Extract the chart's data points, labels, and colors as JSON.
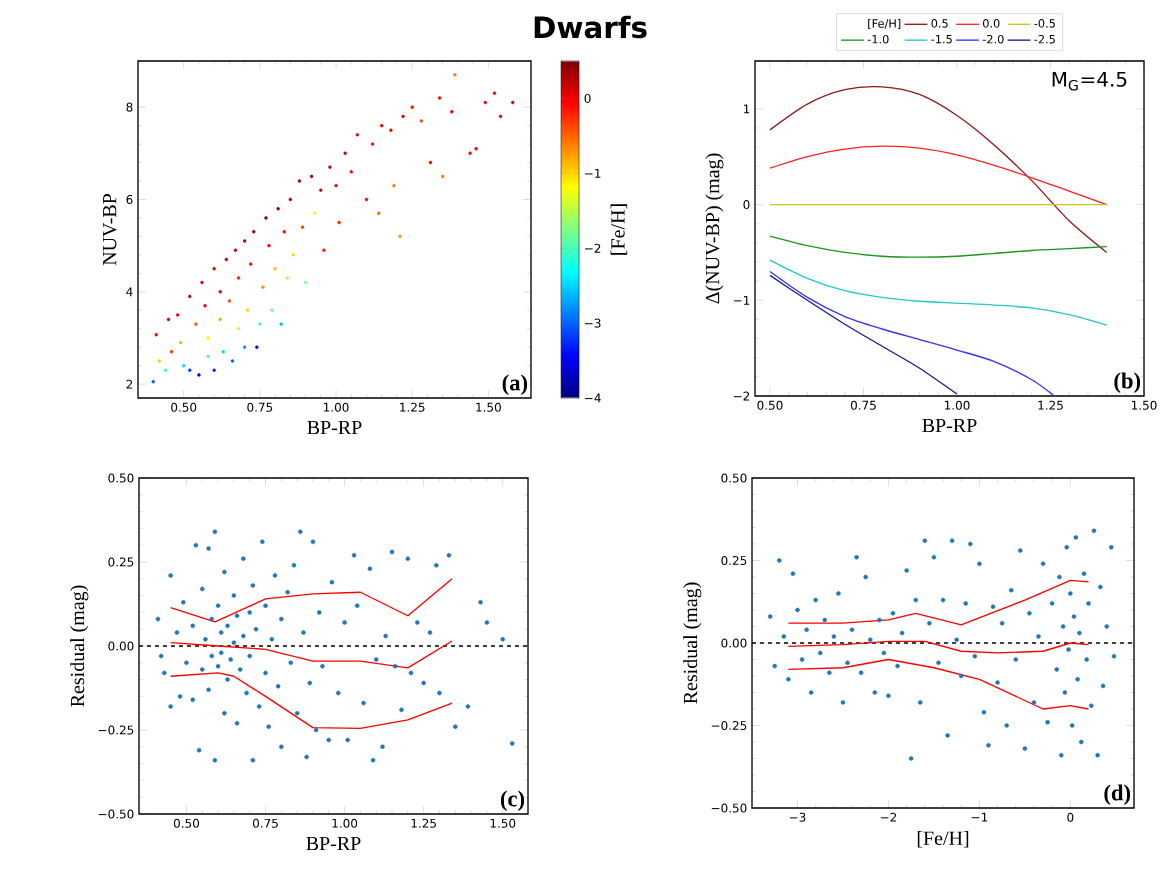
{
  "chart_data": [
    {
      "type": "scatter",
      "title": "Dwarfs",
      "xlabel": "BP-RP",
      "ylabel": "NUV-BP",
      "clabel": "[Fe/H]",
      "marker": "circle",
      "annotations": [
        "(a)"
      ],
      "xlim": [
        0.35,
        1.64
      ],
      "ylim": [
        1.7,
        9.0
      ],
      "xticks": [
        {
          "value": 0.5,
          "label": "0.50"
        },
        {
          "value": 0.75,
          "label": "0.75"
        },
        {
          "value": 1.0,
          "label": "1.00"
        },
        {
          "value": 1.25,
          "label": "1.25"
        },
        {
          "value": 1.5,
          "label": "1.50"
        }
      ],
      "yticks": [
        2,
        4,
        6,
        8
      ],
      "clim": [
        -4,
        0.5
      ],
      "cticks": [
        {
          "value": -4,
          "label": "−4"
        },
        {
          "value": -3,
          "label": "−3"
        },
        {
          "value": -2,
          "label": "−2"
        },
        {
          "value": -1,
          "label": "−1"
        },
        {
          "value": 0,
          "label": "0"
        }
      ],
      "x": [
        0.4,
        0.41,
        0.42,
        0.44,
        0.45,
        0.46,
        0.48,
        0.49,
        0.5,
        0.52,
        0.52,
        0.54,
        0.55,
        0.56,
        0.57,
        0.58,
        0.58,
        0.6,
        0.6,
        0.62,
        0.62,
        0.63,
        0.64,
        0.65,
        0.66,
        0.67,
        0.68,
        0.68,
        0.7,
        0.7,
        0.71,
        0.72,
        0.73,
        0.74,
        0.75,
        0.76,
        0.77,
        0.78,
        0.79,
        0.8,
        0.81,
        0.82,
        0.83,
        0.84,
        0.85,
        0.86,
        0.88,
        0.89,
        0.9,
        0.92,
        0.93,
        0.95,
        0.96,
        0.98,
        1.0,
        1.01,
        1.03,
        1.05,
        1.07,
        1.1,
        1.12,
        1.15,
        1.14,
        1.18,
        1.19,
        1.21,
        1.22,
        1.25,
        1.28,
        1.31,
        1.34,
        1.35,
        1.38,
        1.39,
        1.44,
        1.46,
        1.49,
        1.52,
        1.54,
        1.58
      ],
      "values": [
        2.05,
        3.07,
        2.5,
        2.3,
        3.4,
        2.7,
        3.5,
        2.9,
        2.4,
        3.9,
        2.3,
        3.3,
        2.2,
        4.2,
        3.7,
        2.6,
        3.0,
        4.5,
        2.3,
        4.0,
        3.4,
        2.7,
        4.7,
        3.8,
        2.5,
        4.9,
        3.2,
        4.3,
        5.1,
        2.8,
        3.6,
        4.6,
        5.3,
        2.8,
        3.3,
        4.1,
        5.6,
        5.0,
        3.6,
        4.5,
        5.8,
        3.3,
        5.3,
        4.3,
        6.0,
        4.8,
        6.4,
        5.4,
        4.2,
        6.5,
        5.7,
        6.2,
        4.9,
        6.7,
        6.3,
        5.5,
        7.0,
        6.6,
        7.4,
        6.0,
        7.2,
        7.6,
        5.7,
        7.5,
        6.3,
        5.2,
        7.8,
        8.0,
        7.7,
        6.8,
        8.2,
        6.5,
        7.9,
        8.7,
        7.0,
        7.1,
        8.1,
        8.3,
        7.8,
        8.1
      ],
      "cvalues": [
        -3.0,
        0.0,
        -1.0,
        -2.0,
        0.1,
        -0.3,
        0.0,
        -0.8,
        -2.5,
        0.2,
        -3.2,
        -0.5,
        -3.5,
        0.1,
        0.0,
        -2.0,
        -1.2,
        0.1,
        -3.3,
        0.0,
        -0.8,
        -2.5,
        0.2,
        -0.4,
        -3.0,
        0.3,
        -1.5,
        -0.2,
        0.3,
        -2.8,
        -1.0,
        0.0,
        0.4,
        -3.5,
        -2.0,
        -0.7,
        0.4,
        0.0,
        -1.8,
        -0.9,
        0.4,
        -2.6,
        -0.1,
        -1.5,
        0.3,
        -1.0,
        0.4,
        -0.3,
        -1.8,
        0.4,
        -1.3,
        0.1,
        -0.2,
        0.2,
        0.0,
        -0.2,
        0.2,
        -0.1,
        0.1,
        0.0,
        0.0,
        0.1,
        -0.5,
        0.0,
        -0.6,
        -0.7,
        0.1,
        -0.1,
        -0.4,
        0.0,
        0.0,
        -0.6,
        0.0,
        -0.6,
        0.0,
        0.0,
        0.0,
        0.0,
        0.0,
        0.1
      ]
    },
    {
      "type": "line",
      "xlabel": "BP-RP",
      "ylabel": "Δ(NUV-BP) (mag)",
      "legend": "top",
      "legend_title": "[Fe/H]",
      "annotations": [
        "M$_{G}$=4.5",
        "(b)"
      ],
      "xlim": [
        0.46,
        1.5
      ],
      "ylim": [
        -2,
        1.5
      ],
      "xticks": [
        {
          "value": 0.5,
          "label": "0.50"
        },
        {
          "value": 0.75,
          "label": "0.75"
        },
        {
          "value": 1.0,
          "label": "1.00"
        },
        {
          "value": 1.25,
          "label": "1.25"
        },
        {
          "value": 1.5,
          "label": "1.50"
        }
      ],
      "yticks": [
        {
          "value": -2,
          "label": "−2"
        },
        {
          "value": -1,
          "label": "−1"
        },
        0,
        1
      ],
      "series": [
        {
          "name": "0.5",
          "color": "#8b1a1a",
          "x": [
            0.5,
            0.6,
            0.7,
            0.8,
            0.9,
            1.0,
            1.1,
            1.2,
            1.3,
            1.4
          ],
          "values": [
            0.78,
            1.05,
            1.2,
            1.23,
            1.15,
            0.93,
            0.62,
            0.25,
            -0.17,
            -0.5
          ]
        },
        {
          "name": "0.0",
          "color": "#ff2020",
          "x": [
            0.5,
            0.6,
            0.7,
            0.8,
            0.9,
            1.0,
            1.1,
            1.2,
            1.3,
            1.4
          ],
          "values": [
            0.38,
            0.5,
            0.58,
            0.61,
            0.59,
            0.52,
            0.41,
            0.28,
            0.14,
            0.0
          ]
        },
        {
          "name": "-0.5",
          "color": "#c8c820",
          "x": [
            0.5,
            0.6,
            0.7,
            0.8,
            0.9,
            1.0,
            1.1,
            1.2,
            1.3,
            1.4
          ],
          "values": [
            0,
            0,
            0,
            0,
            0,
            0,
            0,
            0,
            0,
            0
          ]
        },
        {
          "name": "-1.0",
          "color": "#1a961a",
          "x": [
            0.5,
            0.6,
            0.7,
            0.8,
            0.9,
            1.0,
            1.1,
            1.2,
            1.3,
            1.4
          ],
          "values": [
            -0.33,
            -0.43,
            -0.5,
            -0.54,
            -0.55,
            -0.54,
            -0.51,
            -0.48,
            -0.46,
            -0.44
          ]
        },
        {
          "name": "-1.5",
          "color": "#20c8c8",
          "x": [
            0.5,
            0.6,
            0.7,
            0.8,
            0.9,
            1.0,
            1.1,
            1.2,
            1.3,
            1.4
          ],
          "values": [
            -0.58,
            -0.77,
            -0.9,
            -0.97,
            -1.01,
            -1.03,
            -1.05,
            -1.08,
            -1.15,
            -1.26
          ]
        },
        {
          "name": "-2.0",
          "color": "#3333ff",
          "x": [
            0.5,
            0.6,
            0.7,
            0.8,
            0.9,
            1.0,
            1.1,
            1.2,
            1.26
          ],
          "values": [
            -0.7,
            -0.97,
            -1.17,
            -1.3,
            -1.41,
            -1.52,
            -1.64,
            -1.83,
            -2.0
          ]
        },
        {
          "name": "-2.5",
          "color": "#1a1a8c",
          "x": [
            0.5,
            0.6,
            0.7,
            0.8,
            0.9,
            1.0
          ],
          "values": [
            -0.74,
            -1.0,
            -1.25,
            -1.48,
            -1.71,
            -1.98
          ]
        }
      ]
    },
    {
      "type": "scatter",
      "xlabel": "BP-RP",
      "ylabel": "Residual (mag)",
      "marker": "circle",
      "annotations": [
        "(c)"
      ],
      "xlim": [
        0.35,
        1.58
      ],
      "ylim": [
        -0.5,
        0.5
      ],
      "xticks": [
        {
          "value": 0.5,
          "label": "0.50"
        },
        {
          "value": 0.75,
          "label": "0.75"
        },
        {
          "value": 1.0,
          "label": "1.00"
        },
        {
          "value": 1.25,
          "label": "1.25"
        },
        {
          "value": 1.5,
          "label": "1.50"
        }
      ],
      "yticks": [
        {
          "value": -0.5,
          "label": "−0.50"
        },
        {
          "value": -0.25,
          "label": "−0.25"
        },
        {
          "value": 0,
          "label": "0.00"
        },
        {
          "value": 0.25,
          "label": "0.25"
        },
        {
          "value": 0.5,
          "label": "0.50"
        }
      ],
      "ref_lines": [
        {
          "axis": "y",
          "value": 0,
          "color": "#000000",
          "line_style": "dashed"
        }
      ],
      "series": [
        {
          "type": "scatter",
          "color": "#1f77b4",
          "x": [
            0.41,
            0.42,
            0.43,
            0.45,
            0.45,
            0.47,
            0.48,
            0.49,
            0.5,
            0.52,
            0.52,
            0.53,
            0.54,
            0.55,
            0.55,
            0.56,
            0.57,
            0.57,
            0.58,
            0.58,
            0.59,
            0.59,
            0.6,
            0.6,
            0.61,
            0.61,
            0.62,
            0.62,
            0.63,
            0.63,
            0.64,
            0.65,
            0.65,
            0.66,
            0.66,
            0.67,
            0.68,
            0.68,
            0.69,
            0.7,
            0.7,
            0.71,
            0.71,
            0.72,
            0.73,
            0.74,
            0.75,
            0.75,
            0.76,
            0.77,
            0.78,
            0.79,
            0.8,
            0.8,
            0.82,
            0.83,
            0.84,
            0.85,
            0.86,
            0.87,
            0.88,
            0.89,
            0.9,
            0.91,
            0.92,
            0.93,
            0.95,
            0.96,
            0.98,
            1.0,
            1.01,
            1.03,
            1.04,
            1.06,
            1.08,
            1.09,
            1.1,
            1.12,
            1.13,
            1.15,
            1.16,
            1.18,
            1.2,
            1.21,
            1.23,
            1.25,
            1.27,
            1.29,
            1.3,
            1.33,
            1.35,
            1.39,
            1.43,
            1.45,
            1.5,
            1.53
          ],
          "values": [
            0.08,
            -0.03,
            -0.08,
            0.21,
            -0.18,
            0.04,
            -0.15,
            0.13,
            -0.05,
            0.06,
            -0.16,
            0.3,
            -0.31,
            0.17,
            -0.07,
            0.02,
            0.29,
            -0.13,
            0.08,
            -0.03,
            0.34,
            -0.34,
            0.12,
            -0.06,
            -0.02,
            0.04,
            0.22,
            -0.2,
            0.06,
            -0.1,
            -0.04,
            0.15,
            0.01,
            -0.23,
            0.09,
            -0.07,
            0.26,
            0.03,
            -0.14,
            0.1,
            -0.03,
            0.18,
            -0.34,
            0.05,
            -0.18,
            0.31,
            0.12,
            -0.08,
            -0.24,
            0.02,
            0.21,
            -0.12,
            0.08,
            -0.3,
            0.16,
            -0.05,
            0.24,
            -0.2,
            0.34,
            0.04,
            -0.33,
            -0.11,
            0.31,
            -0.25,
            0.1,
            -0.06,
            -0.28,
            0.19,
            -0.14,
            0.07,
            -0.28,
            0.27,
            0.12,
            -0.17,
            0.23,
            -0.34,
            -0.04,
            -0.3,
            0.03,
            0.28,
            -0.06,
            -0.19,
            0.26,
            -0.08,
            0.07,
            -0.11,
            0.04,
            0.24,
            -0.14,
            0.27,
            -0.24,
            -0.18,
            0.13,
            0.07,
            0.02,
            -0.29
          ]
        },
        {
          "type": "line",
          "marker": "none",
          "color": "#ff0000",
          "x": [
            0.45,
            0.59,
            0.75,
            0.9,
            1.05,
            1.2,
            1.34
          ],
          "values": [
            0.114,
            0.072,
            0.14,
            0.155,
            0.16,
            0.09,
            0.2
          ]
        },
        {
          "type": "line",
          "marker": "none",
          "color": "#ff0000",
          "x": [
            0.45,
            0.6,
            0.75,
            0.9,
            1.05,
            1.2,
            1.34
          ],
          "values": [
            0.01,
            0.0,
            -0.01,
            -0.045,
            -0.045,
            -0.065,
            0.015
          ]
        },
        {
          "type": "line",
          "marker": "none",
          "color": "#ff0000",
          "x": [
            0.45,
            0.6,
            0.65,
            0.75,
            0.9,
            1.05,
            1.2,
            1.34
          ],
          "values": [
            -0.09,
            -0.08,
            -0.09,
            -0.15,
            -0.243,
            -0.245,
            -0.22,
            -0.17
          ]
        }
      ]
    },
    {
      "type": "scatter",
      "xlabel": "[Fe/H]",
      "ylabel": "Residual (mag)",
      "marker": "circle",
      "annotations": [
        "(d)"
      ],
      "xlim": [
        -3.5,
        0.7
      ],
      "ylim": [
        -0.5,
        0.5
      ],
      "xticks": [
        {
          "value": -3,
          "label": "−3"
        },
        {
          "value": -2,
          "label": "−2"
        },
        {
          "value": -1,
          "label": "−1"
        },
        0
      ],
      "yticks": [
        {
          "value": -0.5,
          "label": "−0.50"
        },
        {
          "value": -0.25,
          "label": "−0.25"
        },
        {
          "value": 0,
          "label": "0.00"
        },
        {
          "value": 0.25,
          "label": "0.25"
        },
        {
          "value": 0.5,
          "label": "0.50"
        }
      ],
      "ref_lines": [
        {
          "axis": "y",
          "value": 0,
          "color": "#000000",
          "line_style": "dashed"
        }
      ],
      "series": [
        {
          "type": "scatter",
          "color": "#1f77b4",
          "x": [
            -3.3,
            -3.25,
            -3.2,
            -3.15,
            -3.1,
            -3.05,
            -3.0,
            -2.95,
            -2.9,
            -2.85,
            -2.8,
            -2.75,
            -2.7,
            -2.65,
            -2.6,
            -2.55,
            -2.5,
            -2.45,
            -2.4,
            -2.35,
            -2.3,
            -2.25,
            -2.2,
            -2.15,
            -2.1,
            -2.05,
            -2.0,
            -1.95,
            -1.9,
            -1.85,
            -1.8,
            -1.75,
            -1.7,
            -1.65,
            -1.6,
            -1.55,
            -1.5,
            -1.45,
            -1.4,
            -1.35,
            -1.3,
            -1.25,
            -1.2,
            -1.15,
            -1.1,
            -1.05,
            -1.0,
            -0.95,
            -0.9,
            -0.85,
            -0.8,
            -0.75,
            -0.7,
            -0.65,
            -0.6,
            -0.55,
            -0.5,
            -0.45,
            -0.4,
            -0.35,
            -0.3,
            -0.25,
            -0.2,
            -0.15,
            -0.12,
            -0.1,
            -0.08,
            -0.06,
            -0.04,
            -0.02,
            0.0,
            0.02,
            0.04,
            0.06,
            0.08,
            0.1,
            0.12,
            0.15,
            0.18,
            0.2,
            0.23,
            0.26,
            0.3,
            0.33,
            0.36,
            0.4,
            0.45,
            0.48
          ],
          "values": [
            0.08,
            -0.07,
            0.25,
            0.02,
            -0.11,
            0.21,
            0.1,
            -0.05,
            0.04,
            -0.15,
            0.13,
            -0.03,
            0.07,
            -0.09,
            0.02,
            0.15,
            -0.18,
            -0.06,
            0.04,
            0.26,
            -0.09,
            0.2,
            0.01,
            -0.15,
            0.07,
            -0.03,
            -0.16,
            0.09,
            -0.07,
            0.03,
            0.22,
            -0.35,
            0.13,
            -0.18,
            0.31,
            0.06,
            0.26,
            -0.06,
            0.13,
            -0.28,
            0.31,
            0.01,
            -0.1,
            0.12,
            0.3,
            -0.04,
            0.24,
            -0.21,
            -0.31,
            0.11,
            -0.12,
            0.06,
            -0.25,
            0.16,
            -0.05,
            0.28,
            -0.32,
            0.09,
            -0.18,
            0.02,
            0.24,
            -0.24,
            0.12,
            -0.08,
            0.2,
            -0.34,
            0.05,
            -0.15,
            0.29,
            -0.02,
            0.15,
            -0.25,
            0.08,
            0.32,
            -0.11,
            0.03,
            -0.3,
            0.21,
            -0.05,
            0.12,
            -0.19,
            0.34,
            -0.34,
            0.17,
            -0.13,
            0.05,
            0.29,
            -0.04
          ]
        },
        {
          "type": "line",
          "marker": "none",
          "color": "#ff0000",
          "x": [
            -3.1,
            -2.5,
            -2.0,
            -1.7,
            -1.2,
            -0.5,
            0.0,
            0.2
          ],
          "values": [
            0.06,
            0.06,
            0.07,
            0.09,
            0.055,
            0.13,
            0.19,
            0.185
          ]
        },
        {
          "type": "line",
          "marker": "none",
          "color": "#ff0000",
          "x": [
            -3.1,
            -2.5,
            -2.0,
            -1.6,
            -1.2,
            -0.8,
            -0.3,
            0.0,
            0.2
          ],
          "values": [
            -0.01,
            -0.005,
            0.005,
            0.005,
            -0.025,
            -0.03,
            -0.025,
            0.0,
            -0.005
          ]
        },
        {
          "type": "line",
          "marker": "none",
          "color": "#ff0000",
          "x": [
            -3.1,
            -2.5,
            -2.0,
            -1.5,
            -1.0,
            -0.3,
            0.0,
            0.2
          ],
          "values": [
            -0.08,
            -0.075,
            -0.05,
            -0.075,
            -0.11,
            -0.2,
            -0.19,
            -0.2
          ]
        }
      ]
    }
  ]
}
